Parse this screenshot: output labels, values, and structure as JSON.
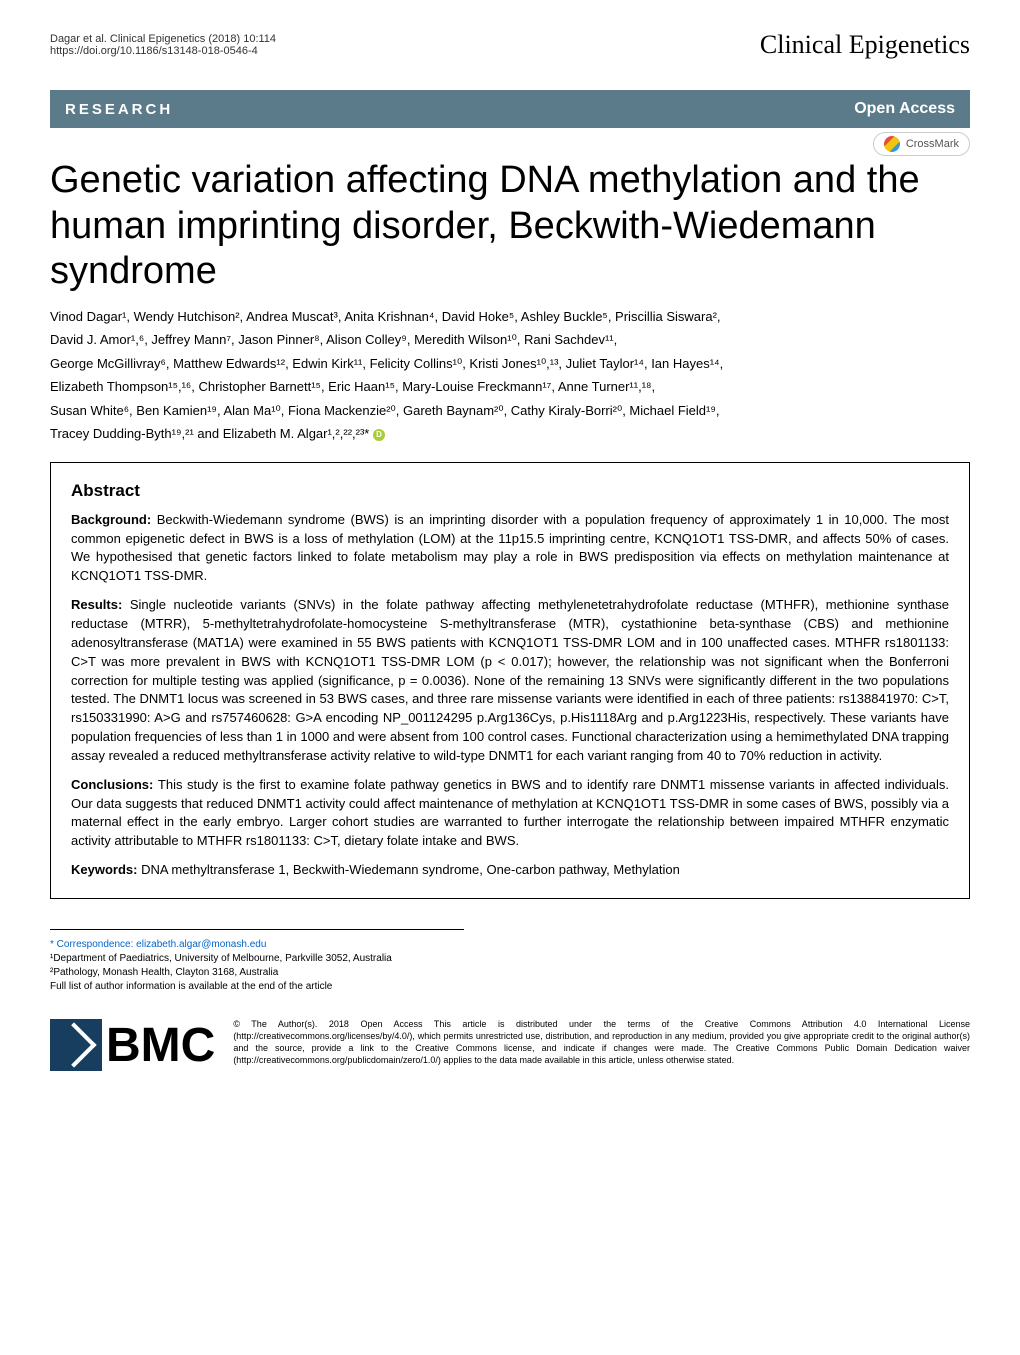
{
  "header": {
    "citation": "Dagar et al. Clinical Epigenetics  (2018) 10:114",
    "doi": "https://doi.org/10.1186/s13148-018-0546-4",
    "journal": "Clinical Epigenetics"
  },
  "bar": {
    "research": "RESEARCH",
    "openAccess": "Open Access"
  },
  "crossmark": "CrossMark",
  "title": "Genetic variation affecting DNA methylation and the human imprinting disorder, Beckwith-Wiedemann syndrome",
  "authorsLine1": "Vinod Dagar¹, Wendy Hutchison², Andrea Muscat³, Anita Krishnan⁴, David Hoke⁵, Ashley Buckle⁵, Priscillia Siswara²,",
  "authorsLine2": "David J. Amor¹,⁶, Jeffrey Mann⁷, Jason Pinner⁸, Alison Colley⁹, Meredith Wilson¹⁰, Rani Sachdev¹¹,",
  "authorsLine3": "George McGillivray⁶, Matthew Edwards¹², Edwin Kirk¹¹, Felicity Collins¹⁰, Kristi Jones¹⁰,¹³, Juliet Taylor¹⁴, Ian Hayes¹⁴,",
  "authorsLine4": "Elizabeth Thompson¹⁵,¹⁶, Christopher Barnett¹⁵, Eric Haan¹⁵, Mary-Louise Freckmann¹⁷, Anne Turner¹¹,¹⁸,",
  "authorsLine5": "Susan White⁶, Ben Kamien¹⁹, Alan Ma¹⁰, Fiona Mackenzie²⁰, Gareth Baynam²⁰, Cathy Kiraly-Borri²⁰, Michael Field¹⁹,",
  "authorsLine6": "Tracey Dudding-Byth¹⁹,²¹ and Elizabeth M. Algar¹,²,²²,²³*",
  "abstract": {
    "heading": "Abstract",
    "background": "Beckwith-Wiedemann syndrome (BWS) is an imprinting disorder with a population frequency of approximately 1 in 10,000. The most common epigenetic defect in BWS is a loss of methylation (LOM) at the 11p15.5 imprinting centre, KCNQ1OT1 TSS-DMR, and affects 50% of cases. We hypothesised that genetic factors linked to folate metabolism may play a role in BWS predisposition via effects on methylation maintenance at KCNQ1OT1 TSS-DMR.",
    "results": "Single nucleotide variants (SNVs) in the folate pathway affecting methylenetetrahydrofolate reductase (MTHFR), methionine synthase reductase (MTRR), 5-methyltetrahydrofolate-homocysteine S-methyltransferase (MTR), cystathionine beta-synthase (CBS) and methionine adenosyltransferase (MAT1A) were examined in 55 BWS patients with KCNQ1OT1 TSS-DMR LOM and in 100 unaffected cases. MTHFR rs1801133: C>T was more prevalent in BWS with KCNQ1OT1 TSS-DMR LOM (p < 0.017); however, the relationship was not significant when the Bonferroni correction for multiple testing was applied (significance, p = 0.0036). None of the remaining 13 SNVs were significantly different in the two populations tested. The DNMT1 locus was screened in 53 BWS cases, and three rare missense variants were identified in each of three patients: rs138841970: C>T, rs150331990: A>G and rs757460628: G>A encoding NP_001124295 p.Arg136Cys, p.His1118Arg and p.Arg1223His, respectively. These variants have population frequencies of less than 1 in 1000 and were absent from 100 control cases. Functional characterization using a hemimethylated DNA trapping assay revealed a reduced methyltransferase activity relative to wild-type DNMT1 for each variant ranging from 40 to 70% reduction in activity.",
    "conclusions": "This study is the first to examine folate pathway genetics in BWS and to identify rare DNMT1 missense variants in affected individuals. Our data suggests that reduced DNMT1 activity could affect maintenance of methylation at KCNQ1OT1 TSS-DMR in some cases of BWS, possibly via a maternal effect in the early embryo. Larger cohort studies are warranted to further interrogate the relationship between impaired MTHFR enzymatic activity attributable to MTHFR rs1801133: C>T, dietary folate intake and BWS.",
    "keywordsLabel": "Keywords:",
    "keywords": "DNA methyltransferase 1, Beckwith-Wiedemann syndrome, One-carbon pathway, Methylation"
  },
  "footer": {
    "correspondence": "* Correspondence: elizabeth.algar@monash.edu",
    "affil1": "¹Department of Paediatrics, University of Melbourne, Parkville 3052, Australia",
    "affil2": "²Pathology, Monash Health, Clayton 3168, Australia",
    "fullList": "Full list of author information is available at the end of the article"
  },
  "bmc": "BMC",
  "license": "© The Author(s). 2018 Open Access This article is distributed under the terms of the Creative Commons Attribution 4.0 International License (http://creativecommons.org/licenses/by/4.0/), which permits unrestricted use, distribution, and reproduction in any medium, provided you give appropriate credit to the original author(s) and the source, provide a link to the Creative Commons license, and indicate if changes were made. The Creative Commons Public Domain Dedication waiver (http://creativecommons.org/publicdomain/zero/1.0/) applies to the data made available in this article, unless otherwise stated."
}
